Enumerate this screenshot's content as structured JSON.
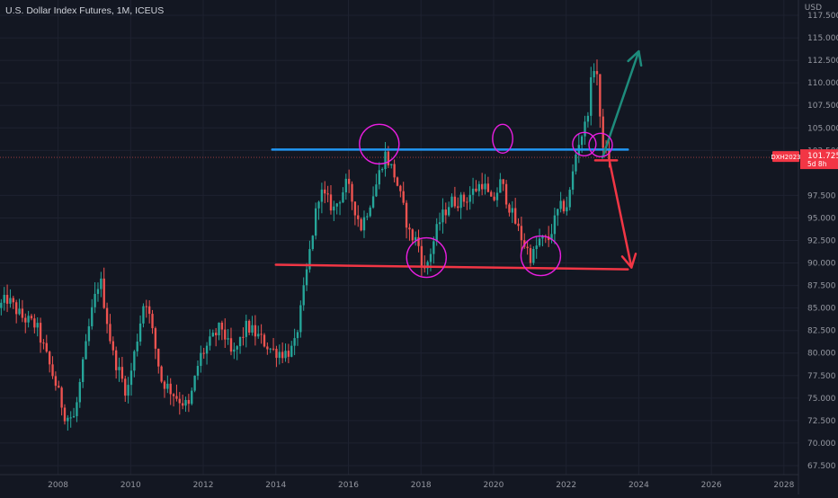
{
  "header": {
    "title": "U.S. Dollar Index Futures, 1M, ICEUS",
    "unit": "USD"
  },
  "price_tag": {
    "symbol": "DXH2023",
    "price": "101.725",
    "sub": "5d 8h"
  },
  "colors": {
    "bg": "#131722",
    "grid": "#1e2230",
    "up": "#26a69a",
    "down": "#ef5350",
    "blue_line": "#2196f3",
    "red_line": "#f23645",
    "circle": "#e91ee0",
    "green_arrow": "#1e8c7c",
    "red_arrow": "#f23645"
  },
  "chart_data": {
    "type": "candlestick",
    "x_ticks": [
      "2008",
      "2010",
      "2012",
      "2014",
      "2016",
      "2018",
      "2020",
      "2022",
      "2024",
      "2026",
      "2028"
    ],
    "y_ticks": [
      "117.500",
      "115.000",
      "112.500",
      "110.000",
      "107.500",
      "105.000",
      "102.500",
      "97.500",
      "95.000",
      "92.500",
      "90.000",
      "87.500",
      "85.000",
      "82.500",
      "80.000",
      "77.500",
      "75.000",
      "72.500",
      "70.000",
      "67.500"
    ],
    "ylim": [
      66.5,
      119.2
    ],
    "xlim": [
      2006.4,
      2028.4
    ],
    "anchors": [
      [
        2006.35,
        85.0
      ],
      [
        2006.6,
        86.0
      ],
      [
        2007.0,
        84.0
      ],
      [
        2007.4,
        83.0
      ],
      [
        2007.9,
        77.0
      ],
      [
        2008.2,
        73.0
      ],
      [
        2008.45,
        72.8
      ],
      [
        2008.7,
        79.0
      ],
      [
        2008.9,
        84.0
      ],
      [
        2009.15,
        88.5
      ],
      [
        2009.5,
        80.0
      ],
      [
        2009.9,
        75.5
      ],
      [
        2010.4,
        86.5
      ],
      [
        2010.85,
        77.0
      ],
      [
        2011.3,
        75.0
      ],
      [
        2011.6,
        74.0
      ],
      [
        2011.9,
        79.5
      ],
      [
        2012.5,
        83.0
      ],
      [
        2012.8,
        79.5
      ],
      [
        2013.2,
        83.0
      ],
      [
        2013.6,
        81.5
      ],
      [
        2013.9,
        80.3
      ],
      [
        2014.25,
        80.0
      ],
      [
        2014.5,
        80.5
      ],
      [
        2014.7,
        85.0
      ],
      [
        2015.0,
        93.0
      ],
      [
        2015.2,
        98.0
      ],
      [
        2015.6,
        96.0
      ],
      [
        2015.95,
        98.8
      ],
      [
        2016.35,
        94.0
      ],
      [
        2016.75,
        98.5
      ],
      [
        2017.0,
        102.2
      ],
      [
        2017.3,
        99.5
      ],
      [
        2017.7,
        93.0
      ],
      [
        2017.9,
        92.5
      ],
      [
        2018.1,
        89.0
      ],
      [
        2018.5,
        94.5
      ],
      [
        2018.8,
        96.8
      ],
      [
        2019.2,
        97.0
      ],
      [
        2019.7,
        99.0
      ],
      [
        2019.95,
        96.5
      ],
      [
        2020.2,
        99.0
      ],
      [
        2020.5,
        95.5
      ],
      [
        2020.8,
        92.5
      ],
      [
        2021.05,
        90.5
      ],
      [
        2021.25,
        92.5
      ],
      [
        2021.5,
        92.5
      ],
      [
        2021.8,
        96.0
      ],
      [
        2022.05,
        96.5
      ],
      [
        2022.3,
        103.0
      ],
      [
        2022.55,
        105.5
      ],
      [
        2022.75,
        112.0
      ],
      [
        2022.85,
        111.0
      ],
      [
        2022.95,
        104.5
      ],
      [
        2023.1,
        102.0
      ],
      [
        2023.2,
        101.7
      ]
    ],
    "lines": [
      {
        "name": "resistance",
        "x": [
          2013.9,
          2023.7
        ],
        "y": [
          102.6,
          102.6
        ]
      },
      {
        "name": "support",
        "x": [
          2014.0,
          2023.7
        ],
        "y": [
          89.8,
          89.3
        ]
      },
      {
        "name": "short-support",
        "x": [
          2022.8,
          2023.4
        ],
        "y": [
          101.4,
          101.4
        ]
      }
    ],
    "arrows": [
      {
        "name": "up-arrow",
        "x": [
          2023.0,
          2024.0
        ],
        "y": [
          101.7,
          113.5
        ]
      },
      {
        "name": "down-arrow",
        "x": [
          2023.2,
          2023.8
        ],
        "y": [
          101.2,
          89.5
        ]
      }
    ],
    "circles": [
      {
        "x": 2016.85,
        "y": 103.2
      },
      {
        "x": 2018.15,
        "y": 90.6
      },
      {
        "x": 2020.25,
        "y": 103.8
      },
      {
        "x": 2021.3,
        "y": 90.8
      },
      {
        "x": 2022.5,
        "y": 103.2
      },
      {
        "x": 2022.95,
        "y": 103.1
      }
    ]
  }
}
